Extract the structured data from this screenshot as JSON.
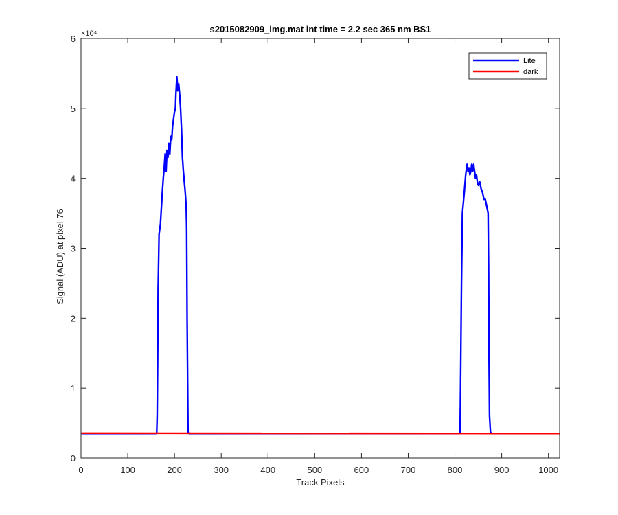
{
  "chart_data": {
    "type": "line",
    "title": "s2015082909_img.mat int time = 2.2 sec  365 nm BS1",
    "xlabel": "Track Pixels",
    "ylabel": "Signal (ADU) at pixel 76",
    "xlim": [
      0,
      1024
    ],
    "ylim": [
      0,
      60000
    ],
    "x_ticks": [
      0,
      100,
      200,
      300,
      400,
      500,
      600,
      700,
      800,
      900,
      1000
    ],
    "x_tick_labels": [
      "0",
      "100",
      "200",
      "300",
      "400",
      "500",
      "600",
      "700",
      "800",
      "900",
      "1000"
    ],
    "y_ticks": [
      0,
      10000,
      20000,
      30000,
      40000,
      50000,
      60000
    ],
    "y_tick_labels": [
      "0",
      "1",
      "2",
      "3",
      "4",
      "5",
      "6"
    ],
    "y_exponent_label": "×10⁴",
    "grid": false,
    "legend_position": "top-right",
    "series": [
      {
        "name": "Lite",
        "color": "#0000ff",
        "x": [
          1,
          160,
          162,
          163,
          164,
          165,
          167,
          168,
          170,
          173,
          176,
          178,
          180,
          182,
          184,
          186,
          188,
          190,
          192,
          194,
          196,
          198,
          200,
          202,
          203,
          205,
          207,
          209,
          211,
          213,
          215,
          217,
          219,
          221,
          223,
          225,
          226,
          227,
          229,
          231,
          810,
          811,
          812,
          814,
          816,
          818,
          820,
          823,
          826,
          828,
          830,
          832,
          834,
          836,
          838,
          840,
          842,
          844,
          846,
          848,
          850,
          853,
          856,
          859,
          862,
          865,
          868,
          871,
          872,
          873,
          874,
          876,
          878,
          1024
        ],
        "y": [
          3500,
          3500,
          3600,
          6000,
          14000,
          24000,
          32000,
          32500,
          33500,
          37000,
          40000,
          41500,
          43500,
          41000,
          44000,
          43000,
          45000,
          43500,
          46000,
          45500,
          47500,
          48500,
          49500,
          50000,
          52000,
          54500,
          52500,
          53500,
          52000,
          50000,
          47000,
          43000,
          41000,
          39500,
          38000,
          36000,
          33000,
          20000,
          3700,
          3500,
          3500,
          3700,
          10000,
          25000,
          35000,
          36500,
          38000,
          40500,
          42000,
          41000,
          41500,
          40500,
          41000,
          42000,
          41000,
          42000,
          41000,
          40000,
          40500,
          39500,
          39000,
          39500,
          38500,
          38000,
          37000,
          37000,
          36000,
          35000,
          27000,
          14000,
          6000,
          3700,
          3500,
          3500
        ]
      },
      {
        "name": "dark",
        "color": "#ff0000",
        "x": [
          1,
          1024
        ],
        "y": [
          3550,
          3500
        ]
      }
    ]
  }
}
